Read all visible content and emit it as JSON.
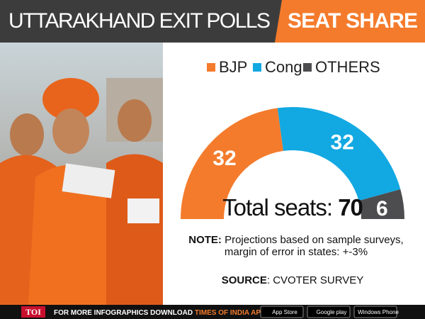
{
  "chart_data": {
    "type": "half-donut",
    "title": "UTTARAKHAND EXIT POLLS",
    "subtitle": "SEAT SHARE",
    "categories": [
      "BJP",
      "Cong",
      "OTHERS"
    ],
    "values": [
      32,
      32,
      6
    ],
    "colors": [
      "#f47b2c",
      "#12a8e2",
      "#4d4d4f"
    ],
    "total_label": "Total seats:",
    "total": 70,
    "note_label": "NOTE:",
    "note": "Projections based on sample surveys, margin of error in states: +-3%",
    "source_label": "SOURCE",
    "source": ": CVOTER SURVEY"
  },
  "footer": {
    "brand": "TOI",
    "text": "FOR MORE INFOGRAPHICS DOWNLOAD",
    "app": "TIMES OF INDIA APP",
    "badges": [
      "App Store",
      "Google play",
      "Windows Phone"
    ]
  }
}
